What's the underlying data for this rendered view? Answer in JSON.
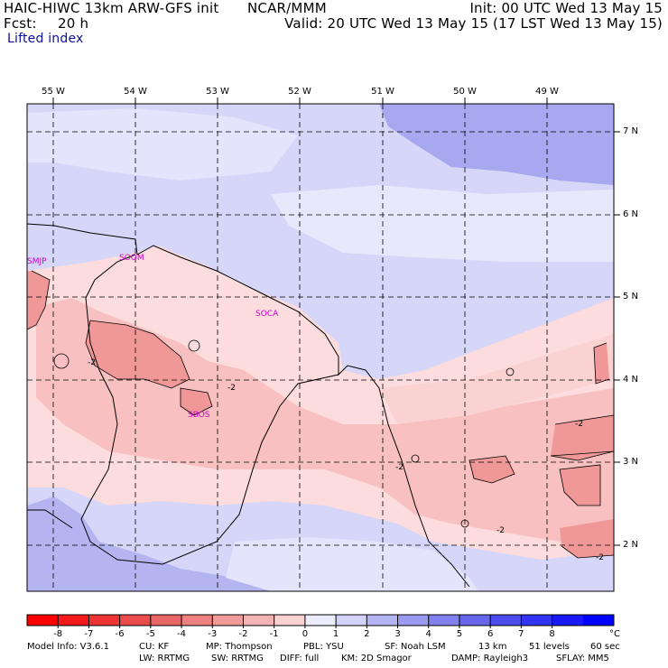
{
  "header": {
    "title_left": "HAIC-HIWC 13km ARW-GFS init",
    "org": "NCAR/MMM",
    "init": "Init: 00 UTC Wed 13 May 15",
    "fcst_label": "Fcst:",
    "fcst_value": "20 h",
    "valid": "Valid: 20 UTC Wed 13 May 15 (17 LST Wed 13 May 15)",
    "field_name": "Lifted index"
  },
  "map": {
    "lon_labels": [
      "55 W",
      "54 W",
      "53 W",
      "52 W",
      "51 W",
      "50 W",
      "49 W"
    ],
    "lat_labels": [
      "7 N",
      "6 N",
      "5 N",
      "4 N",
      "3 N",
      "2 N"
    ],
    "stations": [
      "SMJP",
      "SOOM",
      "SOCA",
      "SBOS"
    ],
    "contour_labels": [
      "-2",
      "-2",
      "-2",
      "-2",
      "-2",
      "-2"
    ],
    "colors": {
      "stable_dark": "#a8a8f0",
      "stable_mid": "#c8c8f8",
      "stable_light": "#e4e4fc",
      "unstable_light": "#fcdcdc",
      "unstable_mid": "#f8c0c0",
      "unstable_dark": "#f09898",
      "station_text": "#cc00cc"
    }
  },
  "colorbar": {
    "tick_labels": [
      "-8",
      "-7",
      "-6",
      "-5",
      "-4",
      "-3",
      "-2",
      "-1",
      "0",
      "1",
      "2",
      "3",
      "4",
      "5",
      "6",
      "7",
      "8"
    ],
    "unit": "°C",
    "colors": [
      "#ff0000",
      "#f41a1a",
      "#ee3333",
      "#ea4c4c",
      "#e86666",
      "#ee8080",
      "#f09a9a",
      "#f5b4b4",
      "#fad2d2",
      "#ececfc",
      "#d2d2fa",
      "#b4b4f5",
      "#9a9af0",
      "#8080ee",
      "#6666ea",
      "#4c4cee",
      "#3333f2",
      "#1a1af8",
      "#0000ff"
    ]
  },
  "footer": {
    "line1": [
      "Model Info: V3.6.1",
      "CU: KF",
      "MP: Thompson",
      "PBL: YSU",
      "SF: Noah LSM",
      "13 km",
      "51 levels",
      "60 sec"
    ],
    "line2": [
      "LW: RRTMG",
      "SW: RRTMG",
      "DIFF: full",
      "KM: 2D Smagor",
      "DAMP: Rayleigh3",
      "SFLAY: MM5"
    ]
  }
}
